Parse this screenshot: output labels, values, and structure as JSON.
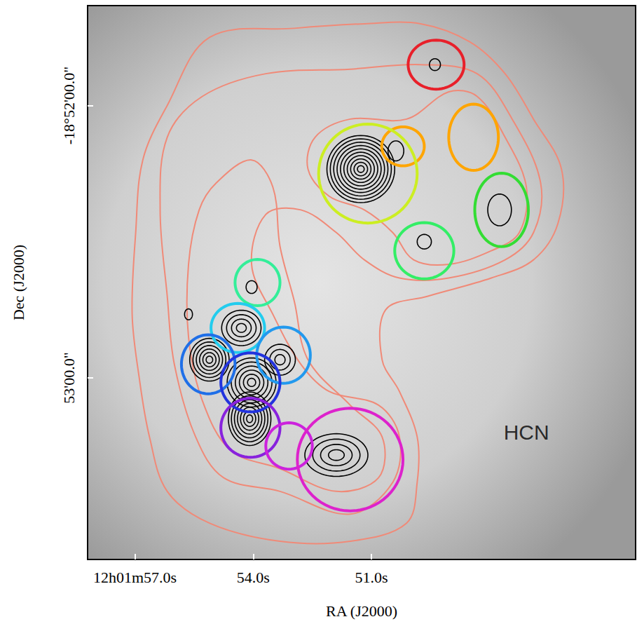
{
  "chart_data": {
    "type": "contour_map",
    "xlabel": "RA (J2000)",
    "ylabel": "Dec (J2000)",
    "annotation": {
      "text": "HCN",
      "x": 47.07,
      "y": -67992
    },
    "xlim": [
      58.2,
      44.3
    ],
    "ylim": [
      -68020,
      -67898
    ],
    "xticks": [
      {
        "value": 57,
        "label": "12h01m57.0s"
      },
      {
        "value": 54,
        "label": "54.0s"
      },
      {
        "value": 51,
        "label": "51.0s"
      }
    ],
    "yticks": [
      {
        "value": -67920,
        "label": "-18°52'00.0\""
      },
      {
        "value": -67980,
        "label": "53'00.0\""
      }
    ],
    "dust_contours": {
      "color": "#f08a78",
      "paths": [
        [
          [
            55.11,
            -67905
          ],
          [
            52.96,
            -67903
          ],
          [
            51.18,
            -67902
          ],
          [
            49.75,
            -67902
          ],
          [
            48.5,
            -67906
          ],
          [
            47.61,
            -67913
          ],
          [
            46.89,
            -67923
          ],
          [
            46.18,
            -67934
          ],
          [
            46.27,
            -67946
          ],
          [
            46.89,
            -67954
          ],
          [
            47.96,
            -67958
          ],
          [
            49.57,
            -67962
          ],
          [
            50.64,
            -67965
          ],
          [
            50.73,
            -67976
          ],
          [
            50.29,
            -67983
          ],
          [
            49.84,
            -67993
          ],
          [
            49.84,
            -68003
          ],
          [
            50.11,
            -68012
          ],
          [
            51.54,
            -68016
          ],
          [
            53.32,
            -68016
          ],
          [
            55.11,
            -68012
          ],
          [
            56.18,
            -68005
          ],
          [
            56.63,
            -67993
          ],
          [
            56.89,
            -67980
          ],
          [
            57.07,
            -67966
          ],
          [
            56.98,
            -67948
          ],
          [
            56.8,
            -67932
          ],
          [
            56.18,
            -67920
          ]
        ],
        [
          [
            56.18,
            -67927
          ],
          [
            55.29,
            -67918
          ],
          [
            53.68,
            -67913
          ],
          [
            51.54,
            -67912
          ],
          [
            49.75,
            -67911
          ],
          [
            48.32,
            -67913
          ],
          [
            47.43,
            -67923
          ],
          [
            46.71,
            -67937
          ],
          [
            46.89,
            -67948
          ],
          [
            47.61,
            -67954
          ],
          [
            49.04,
            -67958
          ],
          [
            50.29,
            -67958
          ],
          [
            51.18,
            -67954
          ],
          [
            51.89,
            -67948
          ],
          [
            52.79,
            -67943
          ],
          [
            53.68,
            -67944
          ],
          [
            54.04,
            -67955
          ],
          [
            53.5,
            -67966
          ],
          [
            52.79,
            -67977
          ],
          [
            52.07,
            -67983
          ],
          [
            50.82,
            -67986
          ],
          [
            50.29,
            -67993
          ],
          [
            50.46,
            -68003
          ],
          [
            51.54,
            -68010
          ],
          [
            53.32,
            -68005
          ],
          [
            54.75,
            -68002
          ],
          [
            55.46,
            -67993
          ],
          [
            56.0,
            -67977
          ],
          [
            56.18,
            -67962
          ],
          [
            56.36,
            -67943
          ]
        ],
        [
          [
            54.93,
            -67937
          ],
          [
            54.04,
            -67932
          ],
          [
            53.5,
            -67938
          ],
          [
            53.32,
            -67951
          ],
          [
            52.96,
            -67963
          ],
          [
            52.61,
            -67976
          ],
          [
            51.54,
            -67986
          ],
          [
            50.73,
            -67993
          ],
          [
            50.82,
            -68002
          ],
          [
            51.89,
            -68005
          ],
          [
            53.32,
            -68000
          ],
          [
            54.57,
            -67996
          ],
          [
            55.29,
            -67985
          ],
          [
            55.64,
            -67971
          ],
          [
            55.64,
            -67955
          ],
          [
            55.37,
            -67943
          ]
        ],
        [
          [
            52.43,
            -67927
          ],
          [
            51.54,
            -67923
          ],
          [
            50.11,
            -67923
          ],
          [
            49.04,
            -67917
          ],
          [
            48.32,
            -67918
          ],
          [
            47.61,
            -67927
          ],
          [
            47.07,
            -67938
          ],
          [
            47.25,
            -67948
          ],
          [
            47.96,
            -67952
          ],
          [
            49.04,
            -67955
          ],
          [
            49.93,
            -67954
          ],
          [
            50.46,
            -67948
          ],
          [
            51.18,
            -67943
          ],
          [
            52.07,
            -67940
          ],
          [
            52.61,
            -67934
          ]
        ]
      ]
    },
    "hcn_contours": {
      "color": "#000000",
      "cores": [
        {
          "x": 51.27,
          "y": -67934,
          "rx": 0.86,
          "ry": 7.4,
          "levels": 10
        },
        {
          "x": 54.09,
          "y": -67989,
          "rx": 0.54,
          "ry": 5.9,
          "levels": 7
        },
        {
          "x": 54.04,
          "y": -67981,
          "rx": 0.62,
          "ry": 5.4,
          "levels": 6
        },
        {
          "x": 55.11,
          "y": -67976,
          "rx": 0.5,
          "ry": 4.7,
          "levels": 6
        },
        {
          "x": 54.3,
          "y": -67969,
          "rx": 0.5,
          "ry": 3.9,
          "levels": 4
        },
        {
          "x": 53.32,
          "y": -67976,
          "rx": 0.39,
          "ry": 3.4,
          "levels": 3
        },
        {
          "x": 51.89,
          "y": -67997,
          "rx": 0.8,
          "ry": 4.7,
          "levels": 4
        },
        {
          "x": 49.66,
          "y": -67950,
          "rx": 0.18,
          "ry": 1.6,
          "levels": 1
        },
        {
          "x": 54.04,
          "y": -67960,
          "rx": 0.14,
          "ry": 1.4,
          "levels": 1
        },
        {
          "x": 49.39,
          "y": -67911,
          "rx": 0.14,
          "ry": 1.3,
          "levels": 1
        },
        {
          "x": 47.75,
          "y": -67943,
          "rx": 0.3,
          "ry": 3.5,
          "levels": 1
        },
        {
          "x": 50.38,
          "y": -67930,
          "rx": 0.2,
          "ry": 2.2,
          "levels": 1
        },
        {
          "x": 55.64,
          "y": -67966,
          "rx": 0.1,
          "ry": 1.2,
          "levels": 1
        }
      ]
    },
    "apertures": [
      {
        "x": 49.36,
        "y": -67911,
        "rx": 0.71,
        "ry": 5.4,
        "color": "#e8202a"
      },
      {
        "x": 48.41,
        "y": -67927,
        "rx": 0.63,
        "ry": 7.3,
        "color": "#ffa500"
      },
      {
        "x": 50.2,
        "y": -67929,
        "rx": 0.54,
        "ry": 4.3,
        "color": "#ffa500"
      },
      {
        "x": 51.09,
        "y": -67935,
        "rx": 1.25,
        "ry": 10.9,
        "color": "#ccee22"
      },
      {
        "x": 47.7,
        "y": -67943,
        "rx": 0.68,
        "ry": 8.1,
        "color": "#33dd33"
      },
      {
        "x": 49.66,
        "y": -67952,
        "rx": 0.75,
        "ry": 6.2,
        "color": "#33ee66"
      },
      {
        "x": 53.89,
        "y": -67959,
        "rx": 0.57,
        "ry": 5.1,
        "color": "#33ee99"
      },
      {
        "x": 54.39,
        "y": -67969,
        "rx": 0.68,
        "ry": 5.4,
        "color": "#22ccee"
      },
      {
        "x": 53.23,
        "y": -67975,
        "rx": 0.68,
        "ry": 6.2,
        "color": "#2299ee"
      },
      {
        "x": 55.14,
        "y": -67977,
        "rx": 0.68,
        "ry": 6.5,
        "color": "#1f6fe8"
      },
      {
        "x": 54.07,
        "y": -67981,
        "rx": 0.75,
        "ry": 6.5,
        "color": "#2233dd"
      },
      {
        "x": 54.07,
        "y": -67991,
        "rx": 0.75,
        "ry": 6.5,
        "color": "#8822dd"
      },
      {
        "x": 53.09,
        "y": -67995,
        "rx": 0.59,
        "ry": 5.1,
        "color": "#cc22dd"
      },
      {
        "x": 51.54,
        "y": -67998,
        "rx": 1.34,
        "ry": 11.3,
        "color": "#dd22cc"
      }
    ]
  }
}
